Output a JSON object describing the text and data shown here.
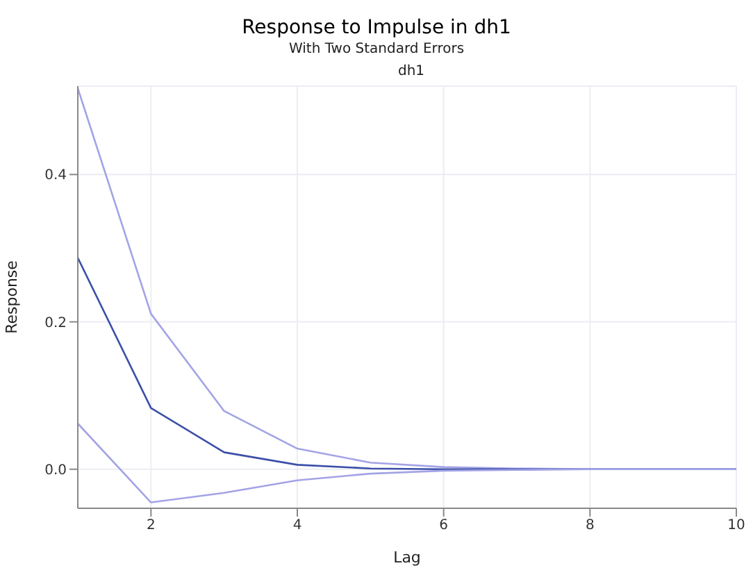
{
  "chart_data": {
    "type": "line",
    "title": "Response to Impulse in dh1",
    "subtitle": "With Two Standard Errors",
    "annotations": [
      "dh1"
    ],
    "xlabel": "Lag",
    "ylabel": "Response",
    "x": [
      1,
      2,
      3,
      4,
      5,
      6,
      7,
      8,
      9,
      10
    ],
    "series": [
      {
        "color": "#a3a3e6",
        "values": [
          0.517,
          0.211,
          0.079,
          0.028,
          0.009,
          0.003,
          0.001,
          0,
          0,
          0
        ]
      },
      {
        "color": "#3b4fa8",
        "values": [
          0.287,
          0.083,
          0.023,
          0.006,
          0.001,
          0,
          0,
          0,
          0,
          0
        ]
      },
      {
        "color": "#a3a3e6",
        "values": [
          0.062,
          -0.045,
          -0.032,
          -0.015,
          -0.006,
          -0.002,
          -0.001,
          0,
          0,
          0
        ]
      }
    ],
    "xlim": [
      1,
      10
    ],
    "xticks": [
      2,
      4,
      6,
      8,
      10
    ],
    "ylim": [
      -0.053,
      0.52
    ],
    "yticks": [
      {
        "value": 0,
        "label": "0.0"
      },
      {
        "value": 0.2,
        "label": "0.2"
      },
      {
        "value": 0.4,
        "label": "0.4"
      }
    ],
    "grid": true,
    "legend": false,
    "marker": "none",
    "line_style": "solid"
  }
}
